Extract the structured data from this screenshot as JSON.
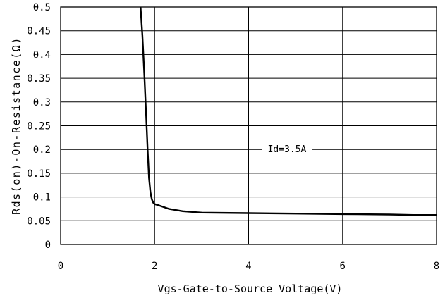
{
  "chart_data": {
    "type": "line",
    "xlabel": "Vgs-Gate-to-Source Voltage(V)",
    "ylabel": "Rds(on)-On-Resistance(Ω)",
    "xlim": [
      0,
      8
    ],
    "ylim": [
      0,
      0.5
    ],
    "x_ticks": [
      0,
      2,
      4,
      6,
      8
    ],
    "x_tick_labels": [
      "0",
      "2",
      "4",
      "6",
      "8"
    ],
    "y_ticks": [
      0,
      0.05,
      0.1,
      0.15,
      0.2,
      0.25,
      0.3,
      0.35,
      0.4,
      0.45,
      0.5
    ],
    "y_tick_labels": [
      "0",
      "0.05",
      "0.1",
      "0.15",
      "0.2",
      "0.25",
      "0.3",
      "0.35",
      "0.4",
      "0.45",
      "0.5"
    ],
    "grid": true,
    "annotation": "Id=3.5A",
    "series": [
      {
        "x": [
          1.7,
          1.74,
          1.78,
          1.82,
          1.85,
          1.88,
          1.91,
          1.94,
          1.97,
          2.0,
          2.1,
          2.3,
          2.6,
          3.0,
          4.0,
          5.0,
          6.0,
          7.0,
          7.5,
          8.0
        ],
        "y": [
          0.5,
          0.44,
          0.36,
          0.27,
          0.2,
          0.14,
          0.11,
          0.095,
          0.088,
          0.085,
          0.082,
          0.075,
          0.07,
          0.067,
          0.066,
          0.065,
          0.064,
          0.063,
          0.062,
          0.062
        ]
      }
    ]
  }
}
